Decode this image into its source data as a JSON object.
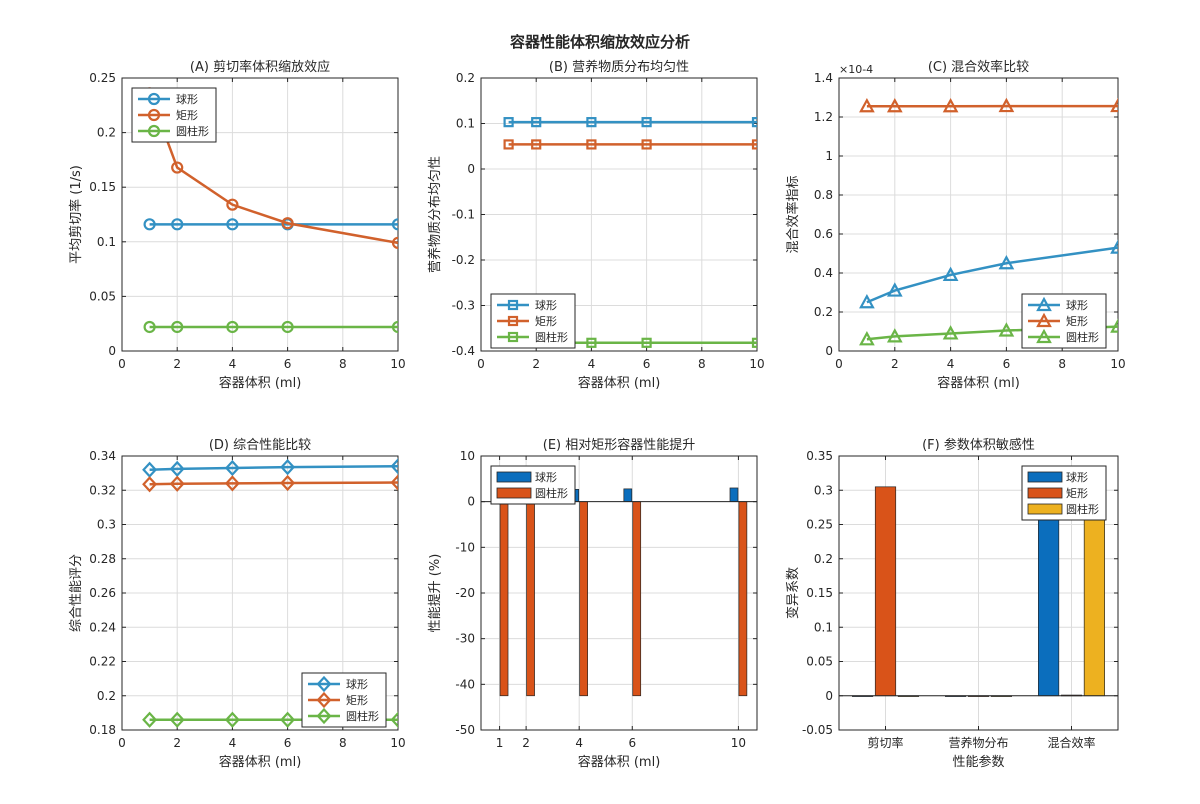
{
  "suptitle": "容器性能体积缩放效应分析",
  "colors": {
    "sphere": "#3391c3",
    "rect": "#d1612c",
    "cyl": "#6ab547",
    "bar_blue": "#0b6ebd",
    "bar_orange": "#d95319",
    "bar_yellow": "#edb120"
  },
  "chart_data": [
    {
      "id": "A",
      "type": "line",
      "title": "(A) 剪切率体积缩放效应",
      "xlabel": "容器体积 (ml)",
      "ylabel": "平均剪切率 (1/s)",
      "xlim": [
        0,
        10
      ],
      "ylim": [
        0,
        0.25
      ],
      "xticks": [
        0,
        2,
        4,
        6,
        8,
        10
      ],
      "xtick_labels": [
        "0",
        "2",
        "4",
        "6",
        "8",
        "10"
      ],
      "yticks": [
        0,
        0.05,
        0.1,
        0.15,
        0.2,
        0.25
      ],
      "ytick_labels": [
        "0",
        "0.05",
        "0.1",
        "0.15",
        "0.2",
        "0.25"
      ],
      "x": [
        1,
        2,
        4,
        6,
        10
      ],
      "marker": "circle",
      "legend_loc": "top-left",
      "series": [
        {
          "name": "球形",
          "color": "#3391c3",
          "values": [
            0.116,
            0.116,
            0.116,
            0.116,
            0.116
          ]
        },
        {
          "name": "矩形",
          "color": "#d1612c",
          "values": [
            0.236,
            0.168,
            0.134,
            0.117,
            0.099
          ]
        },
        {
          "name": "圆柱形",
          "color": "#6ab547",
          "values": [
            0.022,
            0.022,
            0.022,
            0.022,
            0.022
          ]
        }
      ]
    },
    {
      "id": "B",
      "type": "line",
      "title": "(B) 营养物质分布均匀性",
      "xlabel": "容器体积 (ml)",
      "ylabel": "营养物质分布均匀性",
      "xlim": [
        0,
        10
      ],
      "ylim": [
        -0.4,
        0.2
      ],
      "xticks": [
        0,
        2,
        4,
        6,
        8,
        10
      ],
      "xtick_labels": [
        "0",
        "2",
        "4",
        "6",
        "8",
        "10"
      ],
      "yticks": [
        -0.4,
        -0.3,
        -0.2,
        -0.1,
        0,
        0.1,
        0.2
      ],
      "ytick_labels": [
        "-0.4",
        "-0.3",
        "-0.2",
        "-0.1",
        "0",
        "0.1",
        "0.2"
      ],
      "x": [
        1,
        2,
        4,
        6,
        10
      ],
      "marker": "square",
      "legend_loc": "bottom-left",
      "series": [
        {
          "name": "球形",
          "color": "#3391c3",
          "values": [
            0.103,
            0.103,
            0.103,
            0.103,
            0.103
          ]
        },
        {
          "name": "矩形",
          "color": "#d1612c",
          "values": [
            0.054,
            0.054,
            0.054,
            0.054,
            0.054
          ]
        },
        {
          "name": "圆柱形",
          "color": "#6ab547",
          "values": [
            -0.382,
            -0.382,
            -0.382,
            -0.382,
            -0.382
          ]
        }
      ]
    },
    {
      "id": "C",
      "type": "line",
      "title": "(C) 混合效率比较",
      "xlabel": "容器体积 (ml)",
      "ylabel": "混合效率指标",
      "exponent": "×10^-4",
      "xlim": [
        0,
        10
      ],
      "ylim": [
        0,
        1.4
      ],
      "xticks": [
        0,
        2,
        4,
        6,
        8,
        10
      ],
      "xtick_labels": [
        "0",
        "2",
        "4",
        "6",
        "8",
        "10"
      ],
      "yticks": [
        0,
        0.2,
        0.4,
        0.6,
        0.8,
        1,
        1.2,
        1.4
      ],
      "ytick_labels": [
        "0",
        "0.2",
        "0.4",
        "0.6",
        "0.8",
        "1",
        "1.2",
        "1.4"
      ],
      "x": [
        1,
        2,
        4,
        6,
        10
      ],
      "marker": "triangle",
      "legend_loc": "bottom-right",
      "series": [
        {
          "name": "球形",
          "color": "#3391c3",
          "values": [
            0.25,
            0.31,
            0.39,
            0.45,
            0.53
          ]
        },
        {
          "name": "矩形",
          "color": "#d1612c",
          "values": [
            1.255,
            1.255,
            1.255,
            1.256,
            1.256
          ]
        },
        {
          "name": "圆柱形",
          "color": "#6ab547",
          "values": [
            0.06,
            0.075,
            0.09,
            0.105,
            0.125
          ]
        }
      ]
    },
    {
      "id": "D",
      "type": "line",
      "title": "(D) 综合性能比较",
      "xlabel": "容器体积 (ml)",
      "ylabel": "综合性能评分",
      "xlim": [
        0,
        10
      ],
      "ylim": [
        0.18,
        0.34
      ],
      "xticks": [
        0,
        2,
        4,
        6,
        8,
        10
      ],
      "xtick_labels": [
        "0",
        "2",
        "4",
        "6",
        "8",
        "10"
      ],
      "yticks": [
        0.18,
        0.2,
        0.22,
        0.24,
        0.26,
        0.28,
        0.3,
        0.32,
        0.34
      ],
      "ytick_labels": [
        "0.18",
        "0.2",
        "0.22",
        "0.24",
        "0.26",
        "0.28",
        "0.3",
        "0.32",
        "0.34"
      ],
      "x": [
        1,
        2,
        4,
        6,
        10
      ],
      "marker": "diamond",
      "legend_loc": "bottom-right",
      "series": [
        {
          "name": "球形",
          "color": "#3391c3",
          "values": [
            0.332,
            0.3325,
            0.333,
            0.3335,
            0.334
          ]
        },
        {
          "name": "矩形",
          "color": "#d1612c",
          "values": [
            0.3235,
            0.3238,
            0.324,
            0.3242,
            0.3245
          ]
        },
        {
          "name": "圆柱形",
          "color": "#6ab547",
          "values": [
            0.186,
            0.186,
            0.186,
            0.186,
            0.186
          ]
        }
      ]
    },
    {
      "id": "E",
      "type": "bar",
      "title": "(E) 相对矩形容器性能提升",
      "xlabel": "容器体积 (ml)",
      "ylabel": "性能提升 (%)",
      "xlim": [
        0.3,
        10.7
      ],
      "ylim": [
        -50,
        10
      ],
      "xticks": [
        1,
        2,
        4,
        6,
        10
      ],
      "xtick_labels": [
        "1",
        "2",
        "4",
        "6",
        "10"
      ],
      "yticks": [
        -50,
        -40,
        -30,
        -20,
        -10,
        0,
        10
      ],
      "ytick_labels": [
        "-50",
        "-40",
        "-30",
        "-20",
        "-10",
        "0",
        "10"
      ],
      "categories": [
        1,
        2,
        4,
        6,
        10
      ],
      "bar_width": 0.3,
      "legend_loc": "top-left",
      "series": [
        {
          "name": "球形",
          "color": "#0b6ebd",
          "values": [
            2.6,
            2.6,
            2.7,
            2.8,
            3.0
          ]
        },
        {
          "name": "圆柱形",
          "color": "#d95319",
          "values": [
            -42.5,
            -42.5,
            -42.5,
            -42.5,
            -42.5
          ]
        }
      ]
    },
    {
      "id": "F",
      "type": "bar",
      "title": "(F) 参数体积敏感性",
      "xlabel": "性能参数",
      "ylabel": "变异系数",
      "xlim": [
        0.5,
        3.5
      ],
      "ylim": [
        -0.05,
        0.35
      ],
      "xticks": [
        1,
        2,
        3
      ],
      "xtick_labels": [
        "剪切率",
        "营养物分布",
        "混合效率"
      ],
      "yticks": [
        -0.05,
        0,
        0.05,
        0.1,
        0.15,
        0.2,
        0.25,
        0.3,
        0.35
      ],
      "ytick_labels": [
        "-0.05",
        "0",
        "0.05",
        "0.1",
        "0.15",
        "0.2",
        "0.25",
        "0.3",
        "0.35"
      ],
      "categories": [
        "剪切率",
        "营养物分布",
        "混合效率"
      ],
      "bar_width": 0.22,
      "legend_loc": "top-right",
      "series": [
        {
          "name": "球形",
          "color": "#0b6ebd",
          "values": [
            0.0,
            0.0,
            0.295
          ]
        },
        {
          "name": "矩形",
          "color": "#d95319",
          "values": [
            0.305,
            0.0,
            0.001
          ]
        },
        {
          "name": "圆柱形",
          "color": "#edb120",
          "values": [
            0.0,
            0.0,
            0.295
          ]
        }
      ]
    }
  ]
}
